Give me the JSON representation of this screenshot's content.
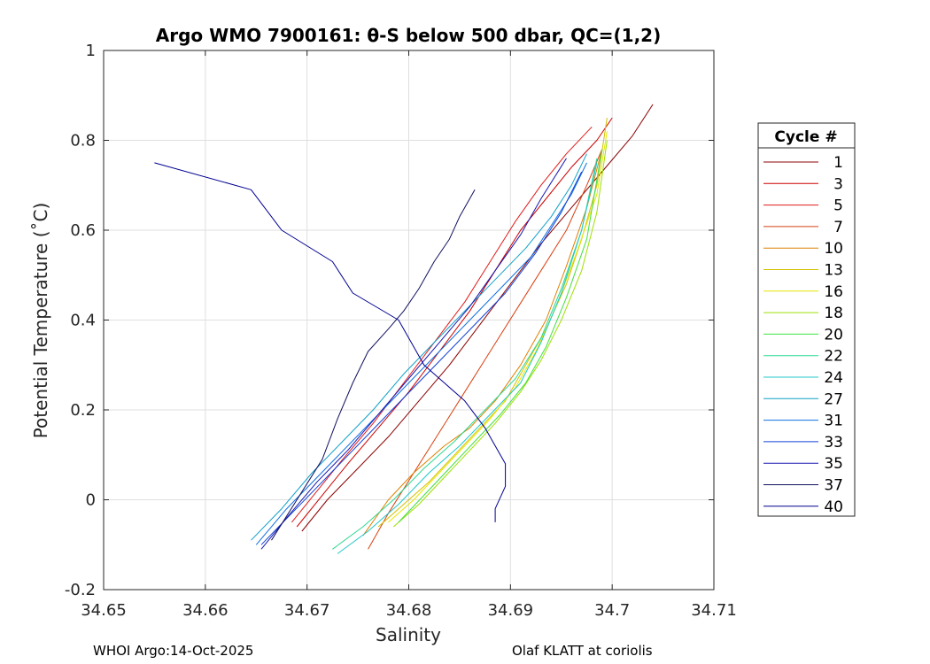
{
  "chart_data": {
    "type": "line",
    "title": "Argo WMO 7900161: θ-S below 500 dbar,  QC=(1,2)",
    "xlabel": "Salinity",
    "ylabel": "Potential Temperature (˚C)",
    "xlim": [
      34.65,
      34.71
    ],
    "ylim": [
      -0.2,
      1
    ],
    "xticks": [
      "34.65",
      "34.66",
      "34.67",
      "34.68",
      "34.69",
      "34.7",
      "34.71"
    ],
    "yticks": [
      "-0.2",
      "0",
      "0.2",
      "0.4",
      "0.6",
      "0.8",
      "1"
    ],
    "grid": true,
    "legend_title": "Cycle #",
    "legend_location": "outside-right",
    "series": [
      {
        "name": "1",
        "color": "#8b0000",
        "x": [
          34.6695,
          34.672,
          34.675,
          34.678,
          34.681,
          34.684,
          34.687,
          34.69,
          34.693,
          34.696,
          34.699,
          34.702,
          34.704
        ],
        "y": [
          -0.07,
          0.0,
          0.07,
          0.14,
          0.22,
          0.3,
          0.39,
          0.48,
          0.57,
          0.65,
          0.73,
          0.81,
          0.88
        ]
      },
      {
        "name": "3",
        "color": "#cc0000",
        "x": [
          34.669,
          34.6715,
          34.674,
          34.677,
          34.68,
          34.683,
          34.686,
          34.6885,
          34.691,
          34.6935,
          34.696,
          34.6985,
          34.7
        ],
        "y": [
          -0.06,
          0.01,
          0.08,
          0.16,
          0.24,
          0.33,
          0.42,
          0.51,
          0.6,
          0.67,
          0.74,
          0.8,
          0.85
        ]
      },
      {
        "name": "5",
        "color": "#e01c1c",
        "x": [
          34.6685,
          34.671,
          34.6735,
          34.6765,
          34.6795,
          34.6825,
          34.6855,
          34.688,
          34.6905,
          34.693,
          34.6955,
          34.698
        ],
        "y": [
          -0.05,
          0.02,
          0.09,
          0.17,
          0.26,
          0.35,
          0.44,
          0.53,
          0.62,
          0.7,
          0.77,
          0.83
        ]
      },
      {
        "name": "7",
        "color": "#d84010",
        "x": [
          34.676,
          34.678,
          34.6805,
          34.683,
          34.6855,
          34.688,
          34.6905,
          34.693,
          34.6955,
          34.6975,
          34.699
        ],
        "y": [
          -0.11,
          -0.03,
          0.06,
          0.15,
          0.24,
          0.33,
          0.42,
          0.51,
          0.6,
          0.7,
          0.78
        ]
      },
      {
        "name": "10",
        "color": "#e08000",
        "x": [
          34.6755,
          34.678,
          34.6805,
          34.6835,
          34.686,
          34.6885,
          34.691,
          34.6935,
          34.6955,
          34.6975,
          34.699
        ],
        "y": [
          -0.08,
          0.0,
          0.06,
          0.12,
          0.16,
          0.22,
          0.3,
          0.4,
          0.52,
          0.65,
          0.78
        ]
      },
      {
        "name": "13",
        "color": "#d4c000",
        "x": [
          34.677,
          34.6795,
          34.682,
          34.6845,
          34.687,
          34.6895,
          34.6915,
          34.6935,
          34.6955,
          34.697,
          34.6985,
          34.6995
        ],
        "y": [
          -0.06,
          -0.01,
          0.04,
          0.1,
          0.16,
          0.22,
          0.3,
          0.38,
          0.48,
          0.58,
          0.7,
          0.85
        ]
      },
      {
        "name": "16",
        "color": "#e6e600",
        "x": [
          34.678,
          34.6805,
          34.683,
          34.6855,
          34.688,
          34.6905,
          34.6925,
          34.6945,
          34.6965,
          34.6985,
          34.6995
        ],
        "y": [
          -0.05,
          0.0,
          0.06,
          0.12,
          0.18,
          0.25,
          0.33,
          0.43,
          0.55,
          0.68,
          0.82
        ]
      },
      {
        "name": "18",
        "color": "#9ee000",
        "x": [
          34.6785,
          34.681,
          34.6835,
          34.686,
          34.6885,
          34.691,
          34.693,
          34.695,
          34.697,
          34.6985,
          34.6995
        ],
        "y": [
          -0.06,
          -0.01,
          0.05,
          0.11,
          0.17,
          0.24,
          0.31,
          0.4,
          0.51,
          0.64,
          0.8
        ]
      },
      {
        "name": "20",
        "color": "#40e040",
        "x": [
          34.679,
          34.6815,
          34.684,
          34.6865,
          34.689,
          34.6915,
          34.6935,
          34.6955,
          34.6975,
          34.699
        ],
        "y": [
          -0.05,
          0.01,
          0.07,
          0.13,
          0.19,
          0.26,
          0.34,
          0.45,
          0.58,
          0.78
        ]
      },
      {
        "name": "22",
        "color": "#2ed890",
        "x": [
          34.6725,
          34.6755,
          34.6785,
          34.6815,
          34.6845,
          34.6875,
          34.6905,
          34.693,
          34.695,
          34.697,
          34.6985
        ],
        "y": [
          -0.11,
          -0.06,
          0.0,
          0.07,
          0.13,
          0.2,
          0.27,
          0.36,
          0.47,
          0.6,
          0.76
        ]
      },
      {
        "name": "24",
        "color": "#20c8c8",
        "x": [
          34.673,
          34.676,
          34.679,
          34.682,
          34.685,
          34.688,
          34.691,
          34.693,
          34.695,
          34.697,
          34.6985
        ],
        "y": [
          -0.12,
          -0.07,
          -0.01,
          0.06,
          0.12,
          0.19,
          0.26,
          0.35,
          0.46,
          0.6,
          0.75
        ]
      },
      {
        "name": "27",
        "color": "#10a0c8",
        "x": [
          34.6645,
          34.6675,
          34.6705,
          34.6735,
          34.6765,
          34.6795,
          34.6825,
          34.6855,
          34.6885,
          34.6915,
          34.694,
          34.696,
          34.6975
        ],
        "y": [
          -0.09,
          -0.02,
          0.06,
          0.13,
          0.2,
          0.28,
          0.35,
          0.42,
          0.49,
          0.56,
          0.63,
          0.7,
          0.77
        ]
      },
      {
        "name": "31",
        "color": "#1070e0",
        "x": [
          34.665,
          34.668,
          34.671,
          34.674,
          34.677,
          34.68,
          34.683,
          34.686,
          34.689,
          34.692,
          34.694,
          34.696,
          34.6975
        ],
        "y": [
          -0.1,
          -0.02,
          0.05,
          0.12,
          0.19,
          0.26,
          0.33,
          0.4,
          0.47,
          0.54,
          0.61,
          0.68,
          0.75
        ]
      },
      {
        "name": "33",
        "color": "#1040d8",
        "x": [
          34.6655,
          34.6685,
          34.6715,
          34.6745,
          34.6775,
          34.6805,
          34.6835,
          34.6865,
          34.6895,
          34.6925,
          34.695,
          34.697
        ],
        "y": [
          -0.1,
          -0.03,
          0.04,
          0.11,
          0.18,
          0.25,
          0.32,
          0.39,
          0.46,
          0.55,
          0.64,
          0.73
        ]
      },
      {
        "name": "35",
        "color": "#1818b0",
        "x": [
          34.6655,
          34.668,
          34.671,
          34.674,
          34.677,
          34.68,
          34.683,
          34.686,
          34.6885,
          34.691,
          34.693,
          34.6955
        ],
        "y": [
          -0.11,
          -0.04,
          0.04,
          0.11,
          0.19,
          0.27,
          0.35,
          0.43,
          0.51,
          0.59,
          0.67,
          0.76
        ]
      },
      {
        "name": "37",
        "color": "#101060",
        "x": [
          34.6665,
          34.669,
          34.6715,
          34.673,
          34.6745,
          34.676,
          34.678,
          34.6795,
          34.681,
          34.6825,
          34.684,
          34.685,
          34.6865
        ],
        "y": [
          -0.09,
          0.0,
          0.09,
          0.18,
          0.26,
          0.33,
          0.38,
          0.42,
          0.47,
          0.53,
          0.58,
          0.63,
          0.69
        ]
      },
      {
        "name": "40",
        "color": "#000090",
        "x": [
          34.655,
          34.6645,
          34.6675,
          34.6725,
          34.6745,
          34.679,
          34.6805,
          34.6815,
          34.6835,
          34.6855,
          34.6875,
          34.6895,
          34.6895,
          34.6885,
          34.6885
        ],
        "y": [
          0.75,
          0.69,
          0.6,
          0.53,
          0.46,
          0.4,
          0.34,
          0.3,
          0.26,
          0.22,
          0.16,
          0.08,
          0.03,
          -0.02,
          -0.05
        ]
      }
    ]
  },
  "footer": {
    "left": "WHOI Argo:14-Oct-2025",
    "right": "Olaf KLATT at coriolis"
  }
}
